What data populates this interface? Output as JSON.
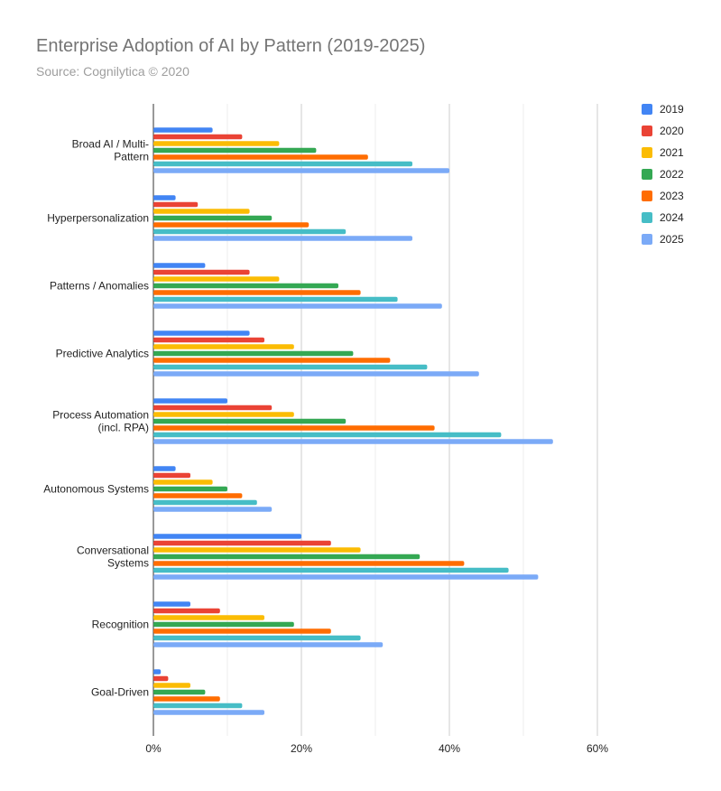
{
  "title": "Enterprise Adoption of AI by Pattern (2019-2025)",
  "subtitle": "Source: Cognilytica © 2020",
  "chart_data": {
    "type": "bar",
    "orientation": "horizontal",
    "categories": [
      "Broad AI / Multi-Pattern",
      "Hyperpersonalization",
      "Patterns / Anomalies",
      "Predictive Analytics",
      "Process Automation (incl. RPA)",
      "Autonomous Systems",
      "Conversational Systems",
      "Recognition",
      "Goal-Driven"
    ],
    "category_lines": [
      [
        "Broad AI / Multi-",
        "Pattern"
      ],
      [
        "Hyperpersonalization"
      ],
      [
        "Patterns / Anomalies"
      ],
      [
        "Predictive Analytics"
      ],
      [
        "Process Automation",
        "(incl. RPA)"
      ],
      [
        "Autonomous Systems"
      ],
      [
        "Conversational",
        "Systems"
      ],
      [
        "Recognition"
      ],
      [
        "Goal-Driven"
      ]
    ],
    "series": [
      {
        "name": "2019",
        "color": "#4285f4",
        "values": [
          8,
          3,
          7,
          13,
          10,
          3,
          20,
          5,
          1
        ]
      },
      {
        "name": "2020",
        "color": "#ea4335",
        "values": [
          12,
          6,
          13,
          15,
          16,
          5,
          24,
          9,
          2
        ]
      },
      {
        "name": "2021",
        "color": "#fbbc04",
        "values": [
          17,
          13,
          17,
          19,
          19,
          8,
          28,
          15,
          5
        ]
      },
      {
        "name": "2022",
        "color": "#34a853",
        "values": [
          22,
          16,
          25,
          27,
          26,
          10,
          36,
          19,
          7
        ]
      },
      {
        "name": "2023",
        "color": "#ff6d01",
        "values": [
          29,
          21,
          28,
          32,
          38,
          12,
          42,
          24,
          9
        ]
      },
      {
        "name": "2024",
        "color": "#46bdc6",
        "values": [
          35,
          26,
          33,
          37,
          47,
          14,
          48,
          28,
          12
        ]
      },
      {
        "name": "2025",
        "color": "#7baaf7",
        "values": [
          40,
          35,
          39,
          44,
          54,
          16,
          52,
          31,
          15
        ]
      }
    ],
    "xlim": [
      0,
      60
    ],
    "xticks": [
      0,
      20,
      40,
      60
    ],
    "xtick_labels": [
      "0%",
      "20%",
      "40%",
      "60%"
    ],
    "grid": true,
    "legend": "right"
  }
}
